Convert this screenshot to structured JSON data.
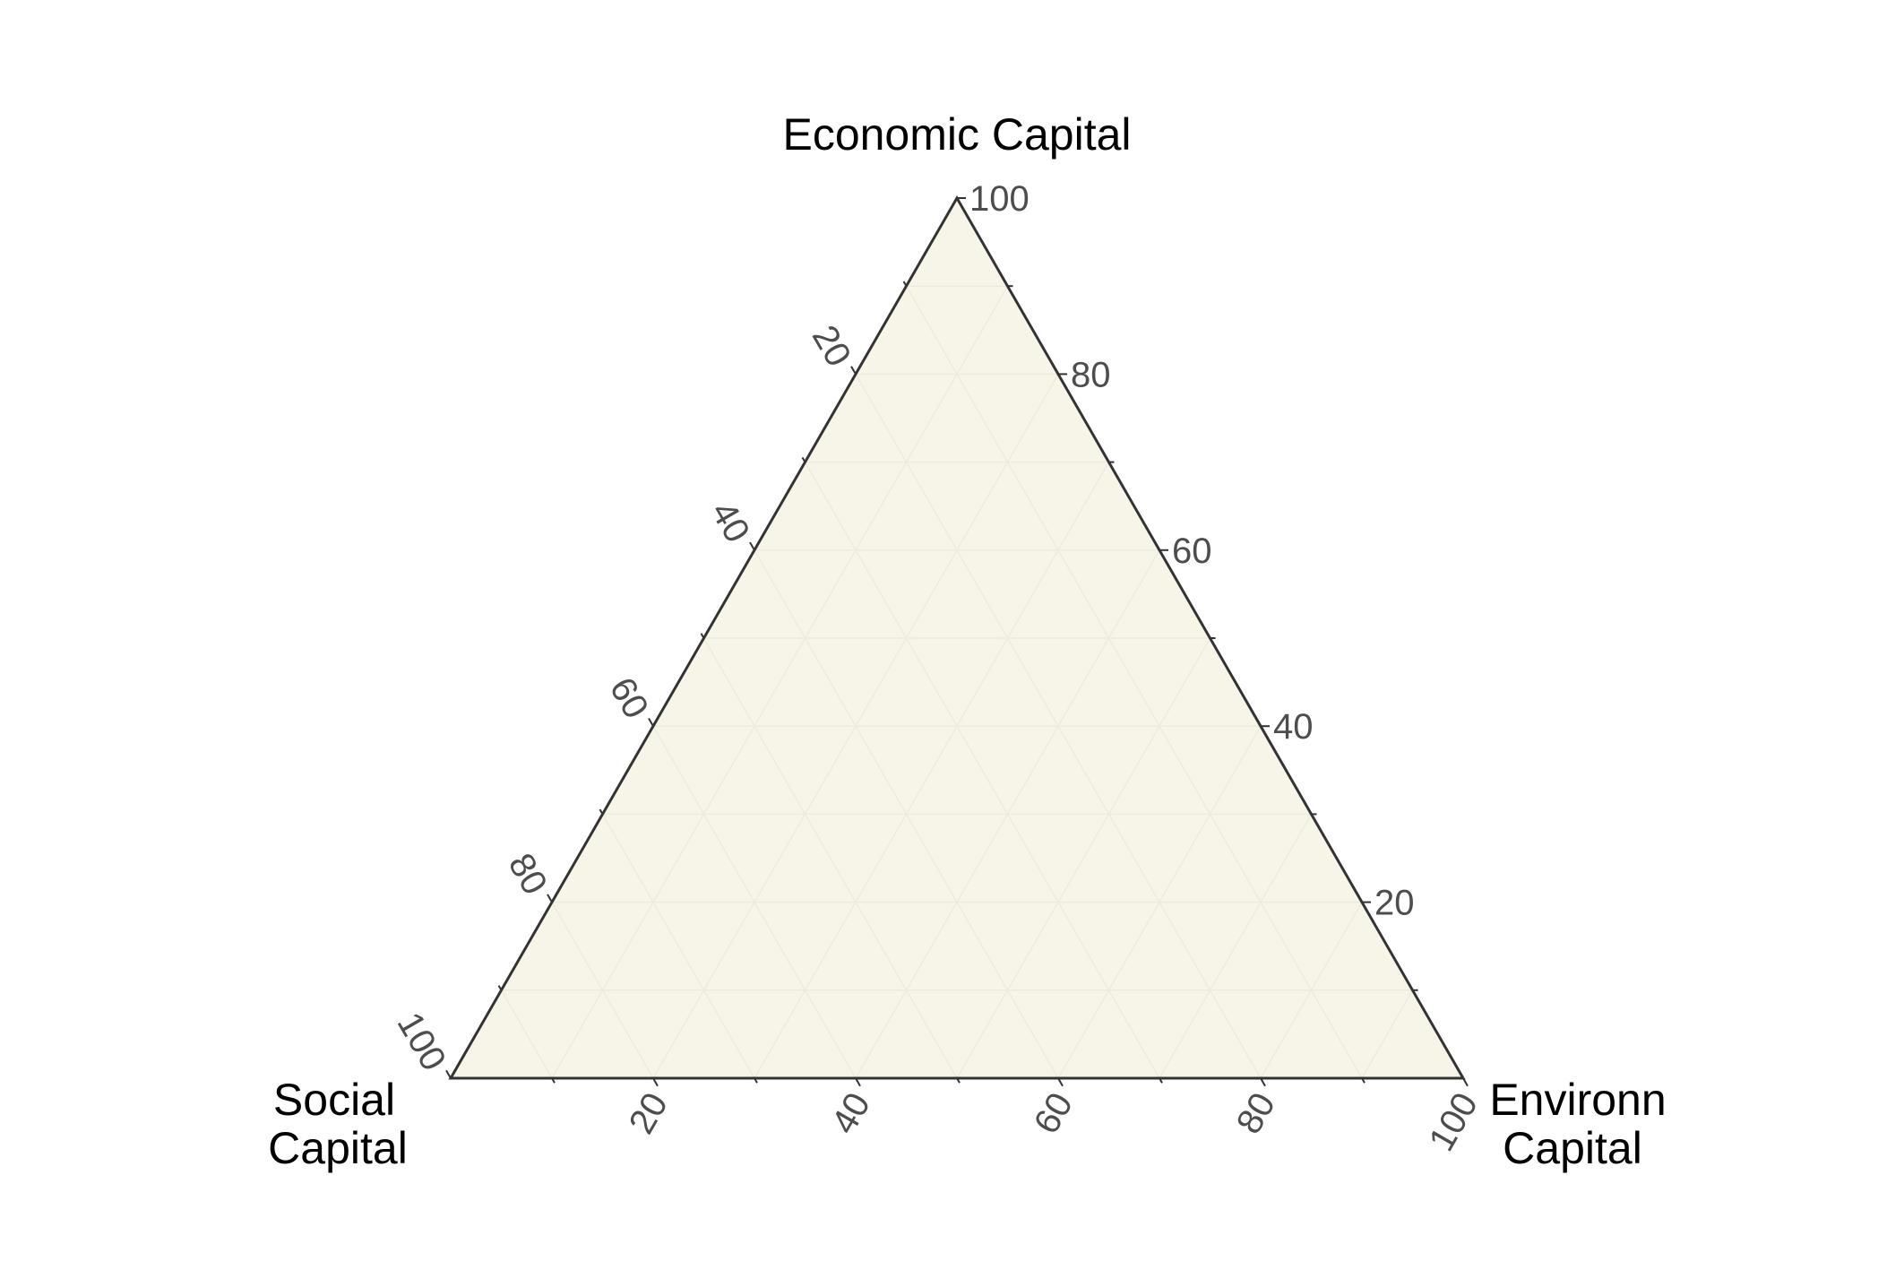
{
  "chart_data": {
    "type": "ternary",
    "axes": {
      "top": {
        "title": "Economic Capital"
      },
      "left": {
        "title_lines": [
          "Social",
          "Capital"
        ]
      },
      "right": {
        "title_lines": [
          "Environn",
          "Capital"
        ]
      }
    },
    "ticks": [
      20,
      40,
      60,
      80,
      100
    ],
    "tick_labels": [
      "20",
      "40",
      "60",
      "80",
      "100"
    ],
    "minor_ticks": [
      10,
      30,
      50,
      70,
      90
    ],
    "range": [
      0,
      100
    ],
    "grid": true,
    "points": [],
    "colors": {
      "panel_fill": "#f7f5e8",
      "border": "#333333",
      "grid": "#ecebdd",
      "tick_text": "#4d4d4d"
    }
  }
}
